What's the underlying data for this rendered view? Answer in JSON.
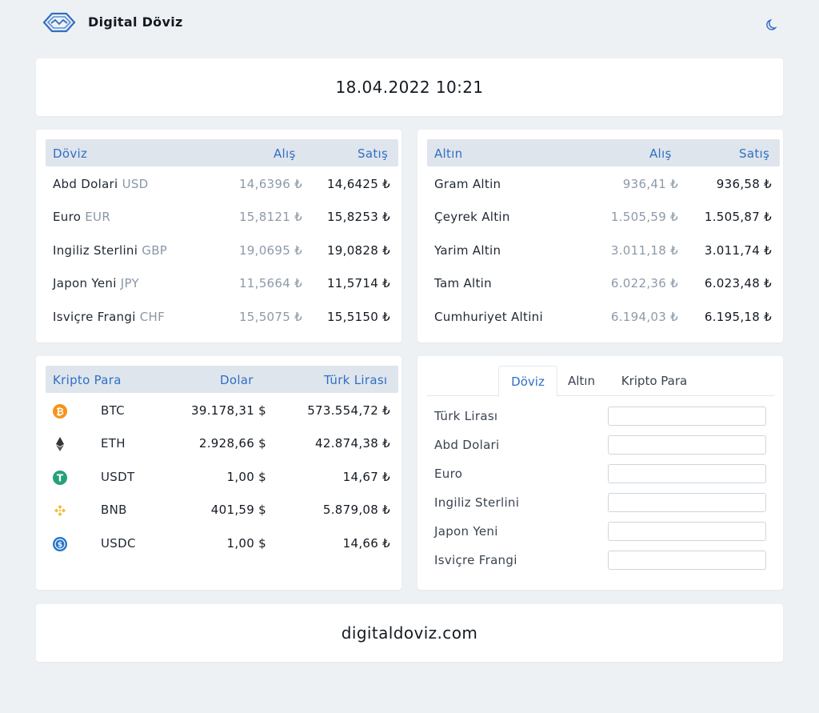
{
  "header": {
    "brand": "Digital Döviz",
    "logo_icon": "diamond-wave-logo",
    "theme_icon": "moon-icon"
  },
  "datetime": "18.04.2022 10:21",
  "doviz": {
    "headers": {
      "name": "Döviz",
      "buy": "Alış",
      "sell": "Satış"
    },
    "rows": [
      {
        "name": "Abd Dolari",
        "code": "USD",
        "buy": "14,6396 ₺",
        "sell": "14,6425 ₺"
      },
      {
        "name": "Euro",
        "code": "EUR",
        "buy": "15,8121 ₺",
        "sell": "15,8253 ₺"
      },
      {
        "name": "Ingiliz Sterlini",
        "code": "GBP",
        "buy": "19,0695 ₺",
        "sell": "19,0828 ₺"
      },
      {
        "name": "Japon Yeni",
        "code": "JPY",
        "buy": "11,5664 ₺",
        "sell": "11,5714 ₺"
      },
      {
        "name": "Isviçre Frangi",
        "code": "CHF",
        "buy": "15,5075 ₺",
        "sell": "15,5150 ₺"
      }
    ]
  },
  "altin": {
    "headers": {
      "name": "Altın",
      "buy": "Alış",
      "sell": "Satış"
    },
    "rows": [
      {
        "name": "Gram Altin",
        "buy": "936,41 ₺",
        "sell": "936,58 ₺"
      },
      {
        "name": "Çeyrek Altin",
        "buy": "1.505,59 ₺",
        "sell": "1.505,87 ₺"
      },
      {
        "name": "Yarim Altin",
        "buy": "3.011,18 ₺",
        "sell": "3.011,74 ₺"
      },
      {
        "name": "Tam Altin",
        "buy": "6.022,36 ₺",
        "sell": "6.023,48 ₺"
      },
      {
        "name": "Cumhuriyet Altini",
        "buy": "6.194,03 ₺",
        "sell": "6.195,18 ₺"
      }
    ]
  },
  "kripto": {
    "headers": {
      "name": "Kripto Para",
      "usd": "Dolar",
      "try": "Türk Lirası"
    },
    "rows": [
      {
        "symbol": "BTC",
        "icon": "bitcoin-icon",
        "color": "#f7931a",
        "usd": "39.178,31 $",
        "try": "573.554,72 ₺"
      },
      {
        "symbol": "ETH",
        "icon": "ethereum-icon",
        "color": "#343434",
        "usd": "2.928,66 $",
        "try": "42.874,38 ₺"
      },
      {
        "symbol": "USDT",
        "icon": "tether-icon",
        "color": "#26a17b",
        "usd": "1,00 $",
        "try": "14,67 ₺"
      },
      {
        "symbol": "BNB",
        "icon": "binance-icon",
        "color": "#f3ba2f",
        "usd": "401,59 $",
        "try": "5.879,08 ₺"
      },
      {
        "symbol": "USDC",
        "icon": "usd-coin-icon",
        "color": "#2775ca",
        "usd": "1,00 $",
        "try": "14,66 ₺"
      }
    ]
  },
  "converter": {
    "tabs": [
      "Döviz",
      "Altın",
      "Kripto Para"
    ],
    "active_tab": "Döviz",
    "fields": [
      {
        "label": "Türk Lirası",
        "value": ""
      },
      {
        "label": "Abd Dolari",
        "value": ""
      },
      {
        "label": "Euro",
        "value": ""
      },
      {
        "label": "Ingiliz Sterlini",
        "value": ""
      },
      {
        "label": "Japon Yeni",
        "value": ""
      },
      {
        "label": "Isviçre Frangi",
        "value": ""
      }
    ]
  },
  "footer": {
    "site": "digitaldoviz.com"
  },
  "colors": {
    "accent": "#2f6fc4",
    "background": "#eef1f4",
    "table_header": "#dfe5ec"
  }
}
